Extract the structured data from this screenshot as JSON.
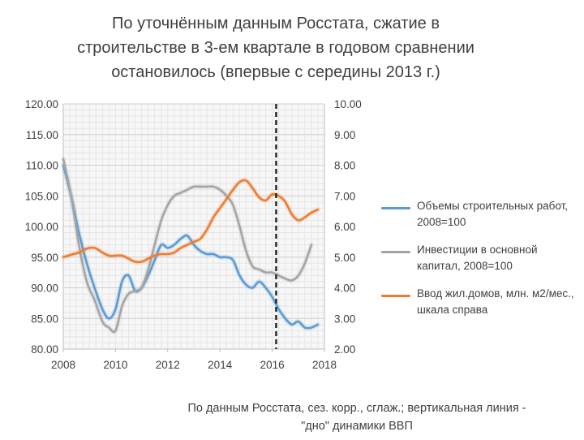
{
  "title_lines": [
    "По уточнённым данным Росстата, сжатие в",
    "строительстве в 3-ем квартале в годовом сравнении",
    "остановилось (впервые с середины 2013 г.)"
  ],
  "note_lines": [
    "По данным Росстата, сез. корр., сглаж.; вертикальная линия -",
    "\"дно\" динамики ВВП"
  ],
  "chart_data": {
    "type": "line",
    "xlim": [
      2008,
      2018
    ],
    "ylim_left": [
      80,
      120
    ],
    "ylim_right": [
      2,
      10
    ],
    "x_ticks": [
      2008,
      2010,
      2012,
      2014,
      2016,
      2018
    ],
    "x_tick_labels": [
      "2008",
      "2010",
      "2012",
      "2014",
      "2016",
      "2018"
    ],
    "y_left_ticks": [
      80,
      85,
      90,
      95,
      100,
      105,
      110,
      115,
      120
    ],
    "y_left_tick_labels": [
      "80.00",
      "85.00",
      "90.00",
      "95.00",
      "100.00",
      "105.00",
      "110.00",
      "115.00",
      "120.00"
    ],
    "y_right_ticks": [
      2,
      3,
      4,
      5,
      6,
      7,
      8,
      9,
      10
    ],
    "y_right_tick_labels": [
      "2.00",
      "3.00",
      "4.00",
      "5.00",
      "6.00",
      "7.00",
      "8.00",
      "9.00",
      "10.00"
    ],
    "vline_x": 2016.15,
    "grid": true,
    "series": [
      {
        "name": "Объемы строительных работ, 2008=100",
        "axis": "left",
        "color": "#5b9bd5",
        "x": [
          2008.0,
          2008.3,
          2008.6,
          2008.9,
          2009.2,
          2009.5,
          2009.75,
          2010.0,
          2010.25,
          2010.5,
          2010.75,
          2011.0,
          2011.25,
          2011.5,
          2011.75,
          2012.0,
          2012.25,
          2012.5,
          2012.75,
          2013.0,
          2013.25,
          2013.5,
          2013.75,
          2014.0,
          2014.25,
          2014.5,
          2014.75,
          2015.0,
          2015.25,
          2015.5,
          2015.75,
          2016.0,
          2016.25,
          2016.5,
          2016.75,
          2017.0,
          2017.25,
          2017.5,
          2017.75
        ],
        "values": [
          110,
          105,
          99,
          94,
          90,
          86.5,
          85,
          86.5,
          91,
          92,
          89.5,
          90,
          92,
          94.5,
          97,
          96.5,
          97,
          98,
          98.5,
          97,
          96,
          95.5,
          95.5,
          95,
          95,
          94.5,
          92,
          90.5,
          90,
          91,
          90,
          88.5,
          86.5,
          85,
          84,
          84.5,
          83.5,
          83.5,
          84
        ]
      },
      {
        "name": "Инвестиции в основной капитал, 2008=100",
        "axis": "left",
        "color": "#a5a5a5",
        "x": [
          2008.0,
          2008.3,
          2008.6,
          2008.9,
          2009.2,
          2009.5,
          2009.75,
          2010.0,
          2010.25,
          2010.5,
          2010.75,
          2011.0,
          2011.25,
          2011.5,
          2011.75,
          2012.0,
          2012.25,
          2012.5,
          2012.75,
          2013.0,
          2013.25,
          2013.5,
          2013.75,
          2014.0,
          2014.25,
          2014.5,
          2014.75,
          2015.0,
          2015.25,
          2015.5,
          2015.75,
          2016.0,
          2016.25,
          2016.5,
          2016.75,
          2017.0,
          2017.25,
          2017.5
        ],
        "values": [
          111,
          105,
          97,
          91,
          88,
          84.5,
          83.5,
          83,
          87,
          89,
          89.5,
          90,
          93,
          97,
          101,
          103.5,
          105,
          105.5,
          106,
          106.5,
          106.5,
          106.5,
          106.5,
          106,
          105,
          103.5,
          100,
          96,
          93.5,
          93,
          92.5,
          92.5,
          92,
          91.5,
          91.2,
          92,
          94,
          97
        ]
      },
      {
        "name": "Ввод жил.домов, млн. м2/мес., шкала справа",
        "axis": "right",
        "color": "#ed7d31",
        "x": [
          2008.0,
          2008.3,
          2008.6,
          2008.9,
          2009.2,
          2009.5,
          2009.75,
          2010.0,
          2010.25,
          2010.5,
          2010.75,
          2011.0,
          2011.25,
          2011.5,
          2011.75,
          2012.0,
          2012.25,
          2012.5,
          2012.75,
          2013.0,
          2013.25,
          2013.5,
          2013.75,
          2014.0,
          2014.25,
          2014.5,
          2014.75,
          2015.0,
          2015.25,
          2015.5,
          2015.75,
          2016.0,
          2016.25,
          2016.5,
          2016.75,
          2017.0,
          2017.25,
          2017.5,
          2017.75
        ],
        "values": [
          5.0,
          5.08,
          5.15,
          5.28,
          5.3,
          5.15,
          5.05,
          5.05,
          5.05,
          4.95,
          4.85,
          4.85,
          4.95,
          5.05,
          5.1,
          5.1,
          5.15,
          5.3,
          5.4,
          5.5,
          5.6,
          5.9,
          6.3,
          6.6,
          6.9,
          7.2,
          7.45,
          7.5,
          7.25,
          6.95,
          6.85,
          7.05,
          7.0,
          6.8,
          6.4,
          6.2,
          6.3,
          6.45,
          6.55
        ]
      }
    ]
  }
}
